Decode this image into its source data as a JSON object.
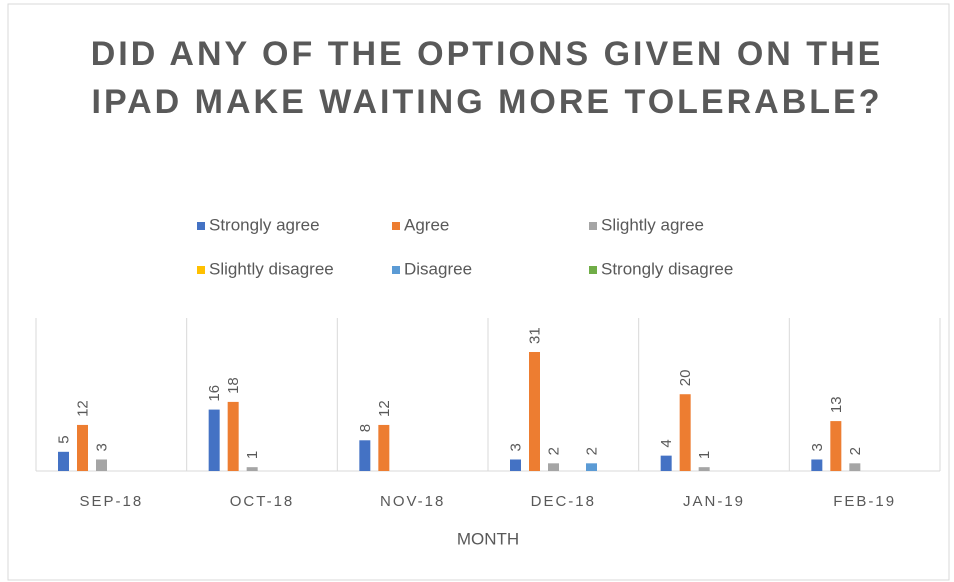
{
  "chart_data": {
    "type": "bar",
    "title": "DID ANY OF THE OPTIONS GIVEN ON THE IPAD MAKE WAITING MORE TOLERABLE?",
    "x_label": "MONTH",
    "categories": [
      "SEP-18",
      "OCT-18",
      "NOV-18",
      "DEC-18",
      "JAN-19",
      "FEB-19"
    ],
    "series": [
      {
        "name": "Strongly agree",
        "color": "#4472c4",
        "values": [
          5,
          16,
          8,
          3,
          4,
          3
        ]
      },
      {
        "name": "Agree",
        "color": "#ed7d31",
        "values": [
          12,
          18,
          12,
          31,
          20,
          13
        ]
      },
      {
        "name": "Slightly agree",
        "color": "#a5a5a5",
        "values": [
          3,
          1,
          null,
          2,
          1,
          2
        ]
      },
      {
        "name": "Slightly disagree",
        "color": "#ffc000",
        "values": [
          null,
          null,
          null,
          null,
          null,
          null
        ]
      },
      {
        "name": "Disagree",
        "color": "#5b9bd5",
        "values": [
          null,
          null,
          null,
          2,
          null,
          null
        ]
      },
      {
        "name": "Strongly disagree",
        "color": "#70ad47",
        "values": [
          null,
          null,
          null,
          null,
          null,
          null
        ]
      }
    ],
    "legend": "top",
    "grid": true
  }
}
